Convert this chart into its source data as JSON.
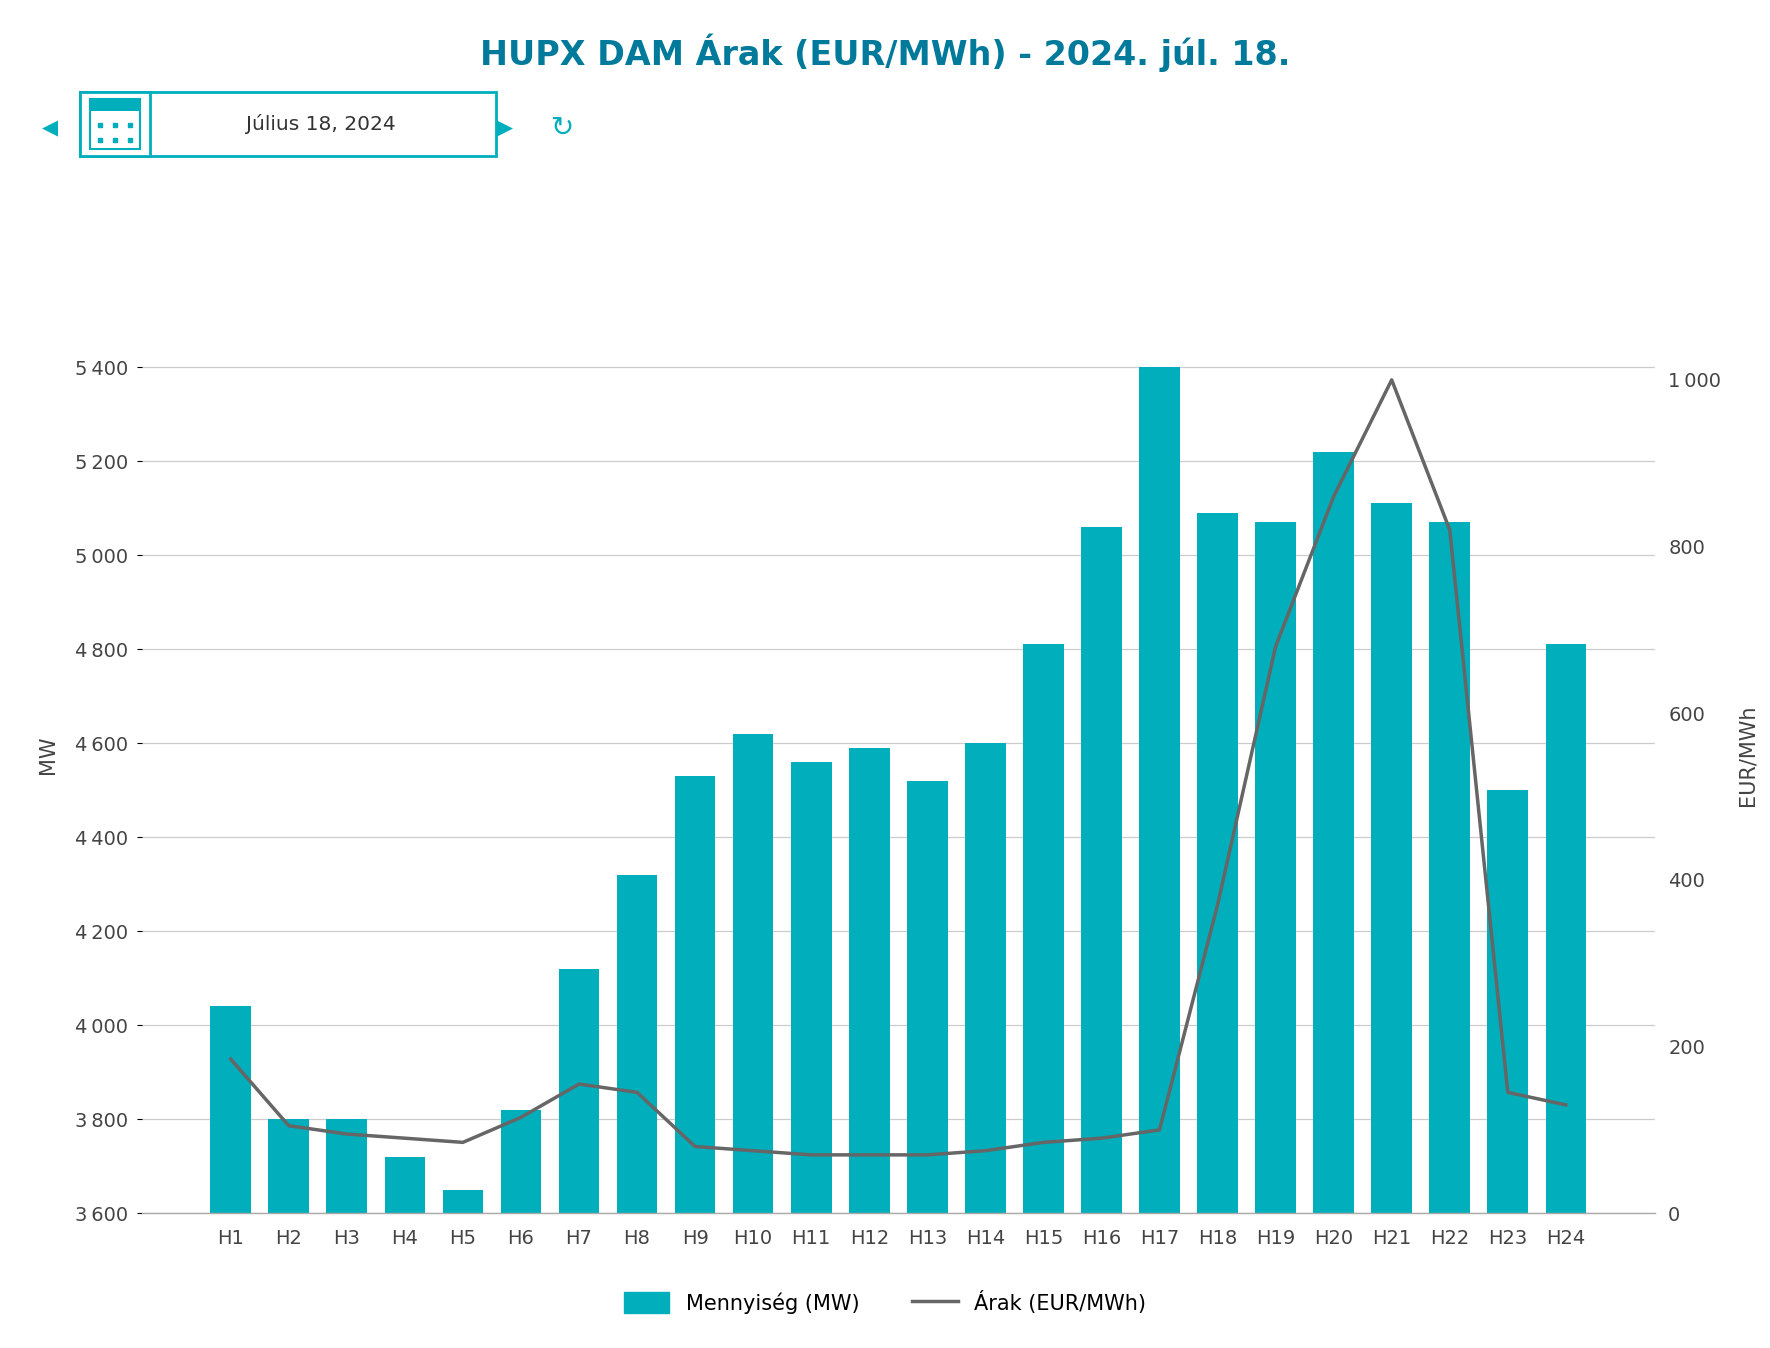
{
  "title": "HUPX DAM Árak (EUR/MWh) - 2024. júl. 18.",
  "date_label": "Július 18, 2024",
  "hours": [
    "H1",
    "H2",
    "H3",
    "H4",
    "H5",
    "H6",
    "H7",
    "H8",
    "H9",
    "H10",
    "H11",
    "H12",
    "H13",
    "H14",
    "H15",
    "H16",
    "H17",
    "H18",
    "H19",
    "H20",
    "H21",
    "H22",
    "H23",
    "H24"
  ],
  "mw_values": [
    4040,
    3800,
    3800,
    3720,
    3650,
    3820,
    4120,
    4320,
    4530,
    4620,
    4560,
    4590,
    4520,
    4600,
    4810,
    5060,
    5400,
    5090,
    5070,
    5220,
    5110,
    5070,
    4500,
    4810
  ],
  "eur_values": [
    185,
    105,
    95,
    90,
    85,
    115,
    155,
    145,
    80,
    75,
    70,
    70,
    70,
    75,
    85,
    90,
    100,
    370,
    680,
    860,
    1000,
    820,
    145,
    130
  ],
  "bar_color": "#00AEBC",
  "line_color": "#666666",
  "ylabel_left": "MW",
  "ylabel_right": "EUR/MWh",
  "ylim_left": [
    3600,
    5550
  ],
  "ylim_right": [
    0,
    1100
  ],
  "yticks_left": [
    3600,
    3800,
    4000,
    4200,
    4400,
    4600,
    4800,
    5000,
    5200,
    5400
  ],
  "yticks_right": [
    0,
    200,
    400,
    600,
    800,
    1000
  ],
  "title_color": "#007A9A",
  "background_color": "#ffffff",
  "legend_bar_label": "Mennyiség (MW)",
  "legend_line_label": "Árak (EUR/MWh)",
  "title_fontsize": 24,
  "axis_fontsize": 15,
  "tick_fontsize": 14,
  "legend_fontsize": 15
}
